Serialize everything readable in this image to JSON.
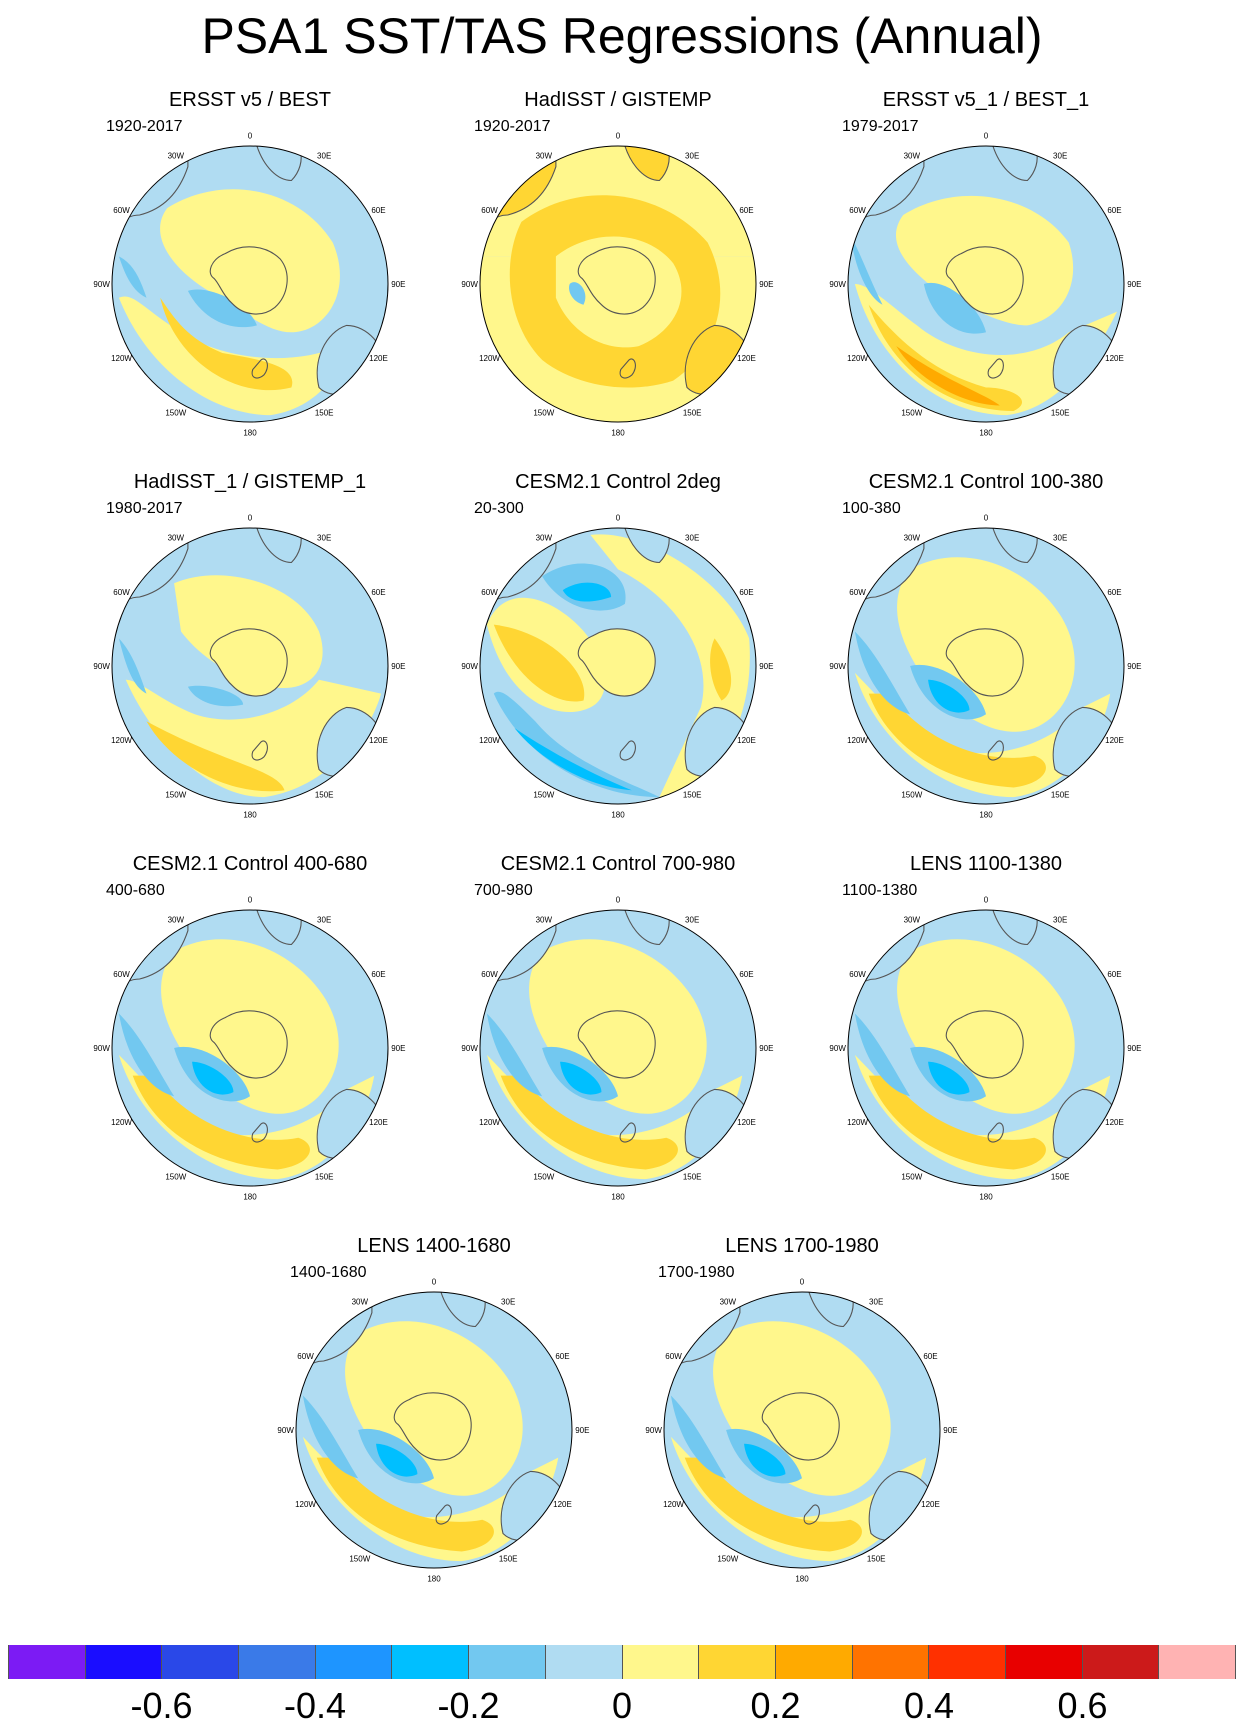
{
  "title": "PSA1 SST/TAS Regressions (Annual)",
  "lon_labels": [
    "0",
    "30E",
    "60E",
    "90E",
    "120E",
    "150E",
    "180",
    "150W",
    "120W",
    "90W",
    "60W",
    "30W"
  ],
  "panels": [
    {
      "title": "ERSST v5 / BEST",
      "period": "1920-2017",
      "pattern": "obs1"
    },
    {
      "title": "HadISST / GISTEMP",
      "period": "1920-2017",
      "pattern": "obs2"
    },
    {
      "title": "ERSST v5_1 / BEST_1",
      "period": "1979-2017",
      "pattern": "obs3"
    },
    {
      "title": "HadISST_1 / GISTEMP_1",
      "period": "1980-2017",
      "pattern": "obs4"
    },
    {
      "title": "CESM2.1 Control 2deg",
      "period": "20-300",
      "pattern": "ctl2"
    },
    {
      "title": "CESM2.1 Control 100-380",
      "period": "100-380",
      "pattern": "model"
    },
    {
      "title": "CESM2.1 Control 400-680",
      "period": "400-680",
      "pattern": "model"
    },
    {
      "title": "CESM2.1 Control 700-980",
      "period": "700-980",
      "pattern": "model"
    },
    {
      "title": "LENS 1100-1380",
      "period": "1100-1380",
      "pattern": "model"
    },
    {
      "title": "LENS 1400-1680",
      "period": "1400-1680",
      "pattern": "model"
    },
    {
      "title": "LENS 1700-1980",
      "period": "1700-1980",
      "pattern": "model"
    }
  ],
  "colorbar": {
    "colors": [
      "#7c1bf4",
      "#1a0dff",
      "#2a48e8",
      "#3a7ae8",
      "#1e95ff",
      "#00bfff",
      "#72c8f0",
      "#b0dcf2",
      "#fff78c",
      "#ffd633",
      "#ffaa00",
      "#ff7300",
      "#ff3000",
      "#e80000",
      "#cc1a1a",
      "#ffb3b3"
    ],
    "labels": [
      "-0.6",
      "-0.4",
      "-0.2",
      "0",
      "0.2",
      "0.4",
      "0.6"
    ],
    "label_values": [
      -0.6,
      -0.4,
      -0.2,
      0,
      0.2,
      0.4,
      0.6
    ],
    "levels": [
      -0.7,
      -0.6,
      -0.5,
      -0.4,
      -0.3,
      -0.2,
      -0.1,
      0,
      0.1,
      0.2,
      0.3,
      0.4,
      0.5,
      0.6,
      0.7
    ]
  }
}
